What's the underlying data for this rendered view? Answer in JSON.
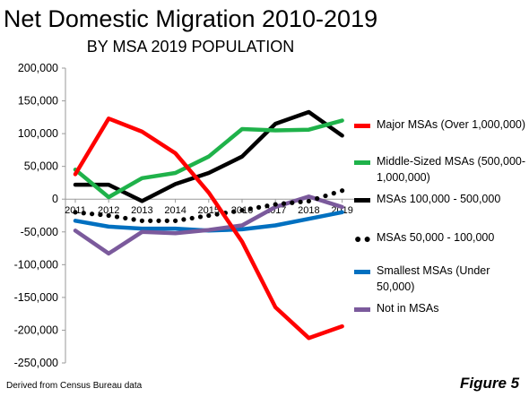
{
  "header": {
    "title": "Net Domestic Migration 2010-2019",
    "subtitle": "BY MSA 2019 POPULATION"
  },
  "footer": {
    "source": "Derived from Census Bureau data",
    "figure_label": "Figure 5"
  },
  "chart_data": {
    "type": "line",
    "title": "Net Domestic Migration 2010-2019",
    "subtitle": "BY MSA 2019 POPULATION",
    "x": [
      "2011",
      "2012",
      "2013",
      "2014",
      "2015",
      "2016",
      "2017",
      "2018",
      "2019"
    ],
    "ylim": [
      -250000,
      200000
    ],
    "yticks": [
      -250000,
      -200000,
      -150000,
      -100000,
      -50000,
      0,
      50000,
      100000,
      150000,
      200000
    ],
    "ytick_labels": [
      "-250,000",
      "-200,000",
      "-150,000",
      "-100,000",
      "-50,000",
      "0",
      "50,000",
      "100,000",
      "150,000",
      "200,000"
    ],
    "grid": false,
    "legend_position": "right",
    "series": [
      {
        "name": "Major MSAs (Over 1,000,000)",
        "color": "#ff0000",
        "style": "solid",
        "values": [
          38000,
          123000,
          103000,
          70000,
          10000,
          -65000,
          -165000,
          -212000,
          -194000
        ]
      },
      {
        "name": "Middle-Sized MSAs (500,000-1,000,000)",
        "color": "#1fb24a",
        "style": "solid",
        "values": [
          45000,
          3000,
          32000,
          40000,
          65000,
          107000,
          105000,
          106000,
          120000
        ]
      },
      {
        "name": "MSAs 100,000 - 500,000",
        "color": "#000000",
        "style": "solid",
        "values": [
          22000,
          22000,
          -3000,
          23000,
          40000,
          65000,
          115000,
          133000,
          97000
        ]
      },
      {
        "name": "MSAs 50,000 - 100,000",
        "color": "#000000",
        "style": "dotted",
        "values": [
          -20000,
          -25000,
          -33000,
          -33000,
          -25000,
          -17000,
          -8000,
          -3000,
          13000
        ]
      },
      {
        "name": "Smallest MSAs (Under 50,000)",
        "color": "#0070c0",
        "style": "solid",
        "values": [
          -33000,
          -42000,
          -45000,
          -45000,
          -48000,
          -46000,
          -40000,
          -30000,
          -20000
        ]
      },
      {
        "name": "Not in MSAs",
        "color": "#7b5a9c",
        "style": "solid",
        "values": [
          -48000,
          -83000,
          -50000,
          -52000,
          -47000,
          -40000,
          -12000,
          4000,
          -12000
        ]
      }
    ]
  }
}
